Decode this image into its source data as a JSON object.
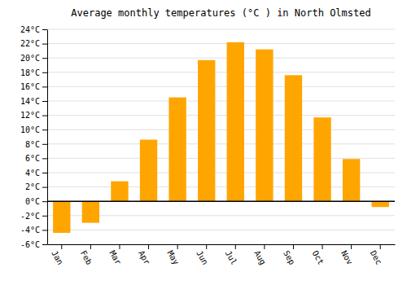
{
  "chart_data": {
    "type": "bar",
    "title": "Average monthly temperatures (°C ) in North Olmsted",
    "categories": [
      "Jan",
      "Feb",
      "Mar",
      "Apr",
      "May",
      "Jun",
      "Jul",
      "Aug",
      "Sep",
      "Oct",
      "Nov",
      "Dec"
    ],
    "values": [
      -4.4,
      -3.0,
      2.8,
      8.6,
      14.5,
      19.7,
      22.2,
      21.2,
      17.6,
      11.7,
      5.9,
      -0.8
    ],
    "color": "#FFA500",
    "ylim": [
      -6,
      24
    ],
    "yticks": [
      {
        "value": -6,
        "label": "-6°C"
      },
      {
        "value": -4,
        "label": "-4°C"
      },
      {
        "value": -2,
        "label": "-2°C"
      },
      {
        "value": 0,
        "label": "0°C"
      },
      {
        "value": 2,
        "label": "2°C"
      },
      {
        "value": 4,
        "label": "4°C"
      },
      {
        "value": 6,
        "label": "6°C"
      },
      {
        "value": 8,
        "label": "8°C"
      },
      {
        "value": 10,
        "label": "10°C"
      },
      {
        "value": 12,
        "label": "12°C"
      },
      {
        "value": 14,
        "label": "14°C"
      },
      {
        "value": 16,
        "label": "16°C"
      },
      {
        "value": 18,
        "label": "18°C"
      },
      {
        "value": 20,
        "label": "20°C"
      },
      {
        "value": 22,
        "label": "22°C"
      },
      {
        "value": 24,
        "label": "24°C"
      }
    ],
    "grid": true
  }
}
